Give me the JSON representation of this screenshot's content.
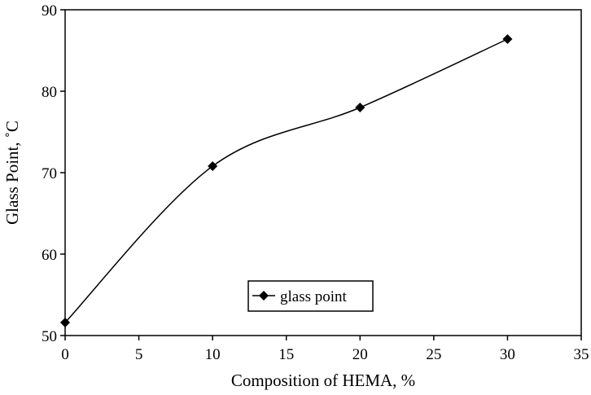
{
  "chart_data": {
    "type": "line",
    "title": "",
    "xlabel": "Composition of HEMA, %",
    "ylabel": "Glass Point, ˚C",
    "xlim": [
      0,
      35
    ],
    "ylim": [
      50,
      90
    ],
    "xticks": [
      "0",
      "5",
      "10",
      "15",
      "20",
      "25",
      "30",
      "35"
    ],
    "yticks": [
      "50",
      "60",
      "70",
      "80",
      "90"
    ],
    "grid": false,
    "legend_position": "lower-center",
    "smooth": true,
    "marker": "diamond",
    "series": [
      {
        "name": "glass point",
        "color": "#000000",
        "x": [
          0,
          10,
          20,
          30
        ],
        "y": [
          51.6,
          70.8,
          78.0,
          86.4
        ]
      }
    ]
  }
}
